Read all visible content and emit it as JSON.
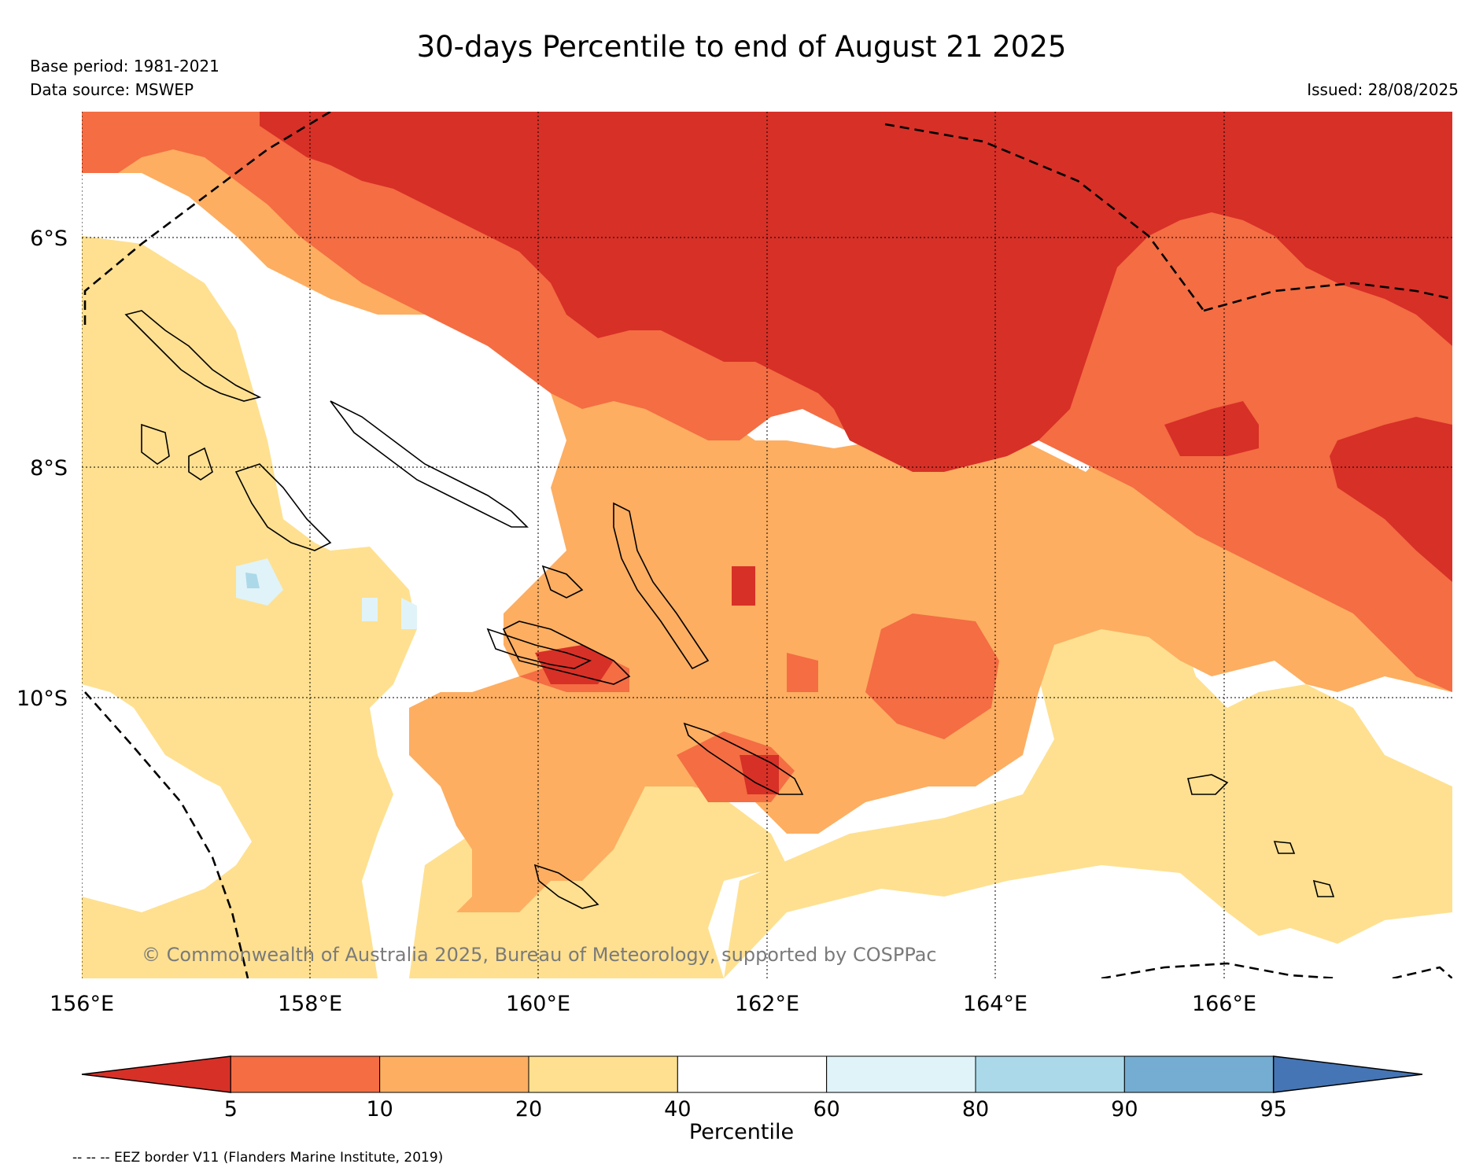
{
  "title": "30-days Percentile to end of August 21 2025",
  "base_period": "Base period: 1981-2021",
  "data_source": "Data source: MSWEP",
  "issued": "Issued: 28/08/2025",
  "copyright": "© Commonwealth of Australia 2025, Bureau of Meteorology, supported by COSPPac",
  "legend_note": "-- -- -- EEZ border V11 (Flanders Marine Institute, 2019)",
  "map": {
    "lon_labels": [
      "156°E",
      "158°E",
      "160°E",
      "162°E",
      "164°E",
      "166°E"
    ],
    "lat_labels": [
      "6°S",
      "8°S",
      "10°S"
    ]
  },
  "colorbar": {
    "label": "Percentile",
    "ticks": [
      "5",
      "10",
      "20",
      "40",
      "60",
      "80",
      "90",
      "95"
    ],
    "colors": [
      "#d73027",
      "#f46d43",
      "#fdae61",
      "#fee090",
      "#ffffff",
      "#e0f3f8",
      "#abd9e9",
      "#74add1",
      "#4575b4"
    ]
  }
}
